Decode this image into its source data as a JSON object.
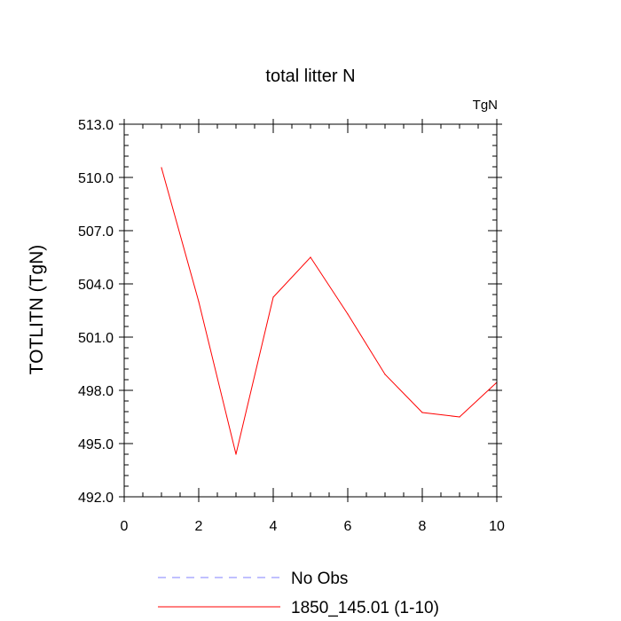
{
  "chart_data": {
    "type": "line",
    "title": "total litter N",
    "units_label": "TgN",
    "xlabel": "",
    "ylabel": "TOTLITN  (TgN)",
    "xlim": [
      0,
      10
    ],
    "ylim": [
      492,
      513
    ],
    "x_ticks": [
      0,
      2,
      4,
      6,
      8,
      10
    ],
    "x_tick_labels": [
      "0",
      "2",
      "4",
      "6",
      "8",
      "10"
    ],
    "y_ticks": [
      492,
      495,
      498,
      501,
      504,
      507,
      510,
      513
    ],
    "y_tick_labels": [
      "492.0",
      "495.0",
      "498.0",
      "501.0",
      "504.0",
      "507.0",
      "510.0",
      "513.0"
    ],
    "grid": false,
    "legend_position": "bottom",
    "series": [
      {
        "name": "1850_145.01 (1-10)",
        "color": "#ff0000",
        "dash": "solid",
        "x": [
          1,
          2,
          3,
          4,
          5,
          6,
          7,
          8,
          9,
          10
        ],
        "y": [
          510.55,
          503.0,
          494.4,
          503.25,
          505.5,
          502.3,
          498.9,
          496.75,
          496.5,
          498.45
        ]
      }
    ],
    "legend": [
      {
        "label": "No Obs",
        "color": "#8080ff",
        "dash": "dashed"
      },
      {
        "label": "1850_145.01 (1-10)",
        "color": "#ff0000",
        "dash": "solid"
      }
    ]
  }
}
